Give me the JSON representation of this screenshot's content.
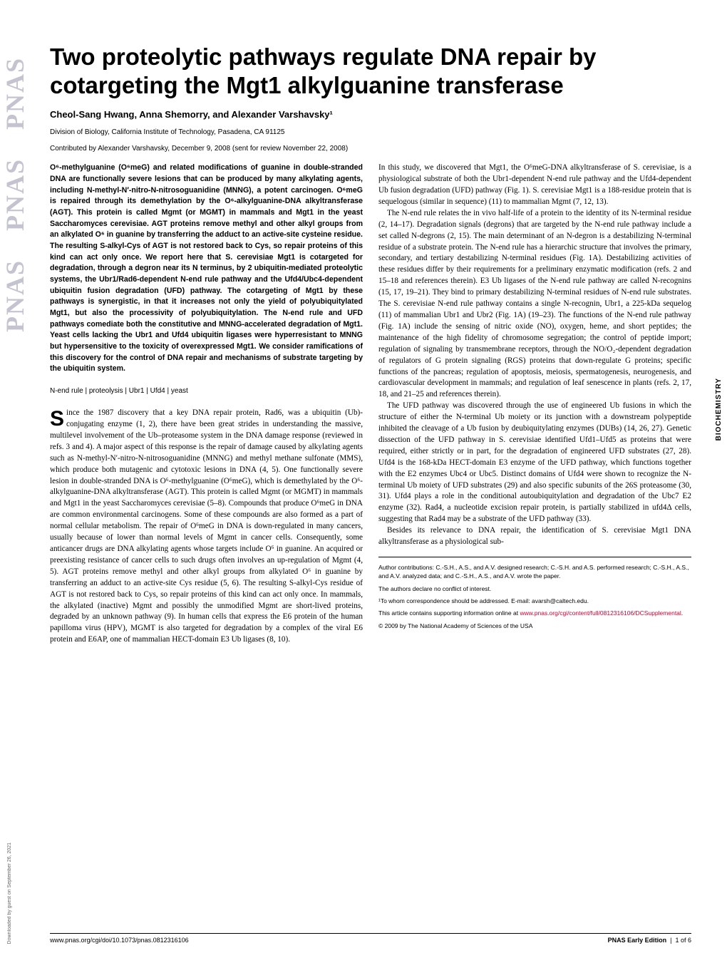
{
  "sidebar": {
    "logo_text": "PNAS",
    "download_note": "Downloaded by guest on September 26, 2021",
    "category": "BIOCHEMISTRY"
  },
  "header": {
    "title": "Two proteolytic pathways regulate DNA repair by cotargeting the Mgt1 alkylguanine transferase",
    "authors": "Cheol-Sang Hwang, Anna Shemorry, and Alexander Varshavsky¹",
    "affiliation": "Division of Biology, California Institute of Technology, Pasadena, CA 91125",
    "contributed": "Contributed by Alexander Varshavsky, December 9, 2008 (sent for review November 22, 2008)"
  },
  "abstract": "O⁶-methylguanine (O⁶meG) and related modifications of guanine in double-stranded DNA are functionally severe lesions that can be produced by many alkylating agents, including N-methyl-N′-nitro-N-nitrosoguanidine (MNNG), a potent carcinogen. O⁶meG is repaired through its demethylation by the O⁶-alkylguanine-DNA alkyltransferase (AGT). This protein is called Mgmt (or MGMT) in mammals and Mgt1 in the yeast Saccharomyces cerevisiae. AGT proteins remove methyl and other alkyl groups from an alkylated O⁶ in guanine by transferring the adduct to an active-site cysteine residue. The resulting S-alkyl-Cys of AGT is not restored back to Cys, so repair proteins of this kind can act only once. We report here that S. cerevisiae Mgt1 is cotargeted for degradation, through a degron near its N terminus, by 2 ubiquitin-mediated proteolytic systems, the Ubr1/Rad6-dependent N-end rule pathway and the Ufd4/Ubc4-dependent ubiquitin fusion degradation (UFD) pathway. The cotargeting of Mgt1 by these pathways is synergistic, in that it increases not only the yield of polyubiquitylated Mgt1, but also the processivity of polyubiquitylation. The N-end rule and UFD pathways comediate both the constitutive and MNNG-accelerated degradation of Mgt1. Yeast cells lacking the Ubr1 and Ufd4 ubiquitin ligases were hyperresistant to MNNG but hypersensitive to the toxicity of overexpressed Mgt1. We consider ramifications of this discovery for the control of DNA repair and mechanisms of substrate targeting by the ubiquitin system.",
  "keywords": "N-end rule | proteolysis | Ubr1 | Ufd4 | yeast",
  "col1_body": {
    "p1_first": "S",
    "p1_rest": "ince the 1987 discovery that a key DNA repair protein, Rad6, was a ubiquitin (Ub)-conjugating enzyme (1, 2), there have been great strides in understanding the massive, multilevel involvement of the Ub–proteasome system in the DNA damage response (reviewed in refs. 3 and 4). A major aspect of this response is the repair of damage caused by alkylating agents such as N-methyl-N′-nitro-N-nitrosoguanidine (MNNG) and methyl methane sulfonate (MMS), which produce both mutagenic and cytotoxic lesions in DNA (4, 5). One functionally severe lesion in double-stranded DNA is O⁶-methylguanine (O⁶meG), which is demethylated by the O⁶-alkylguanine-DNA alkyltransferase (AGT). This protein is called Mgmt (or MGMT) in mammals and Mgt1 in the yeast Saccharomyces cerevisiae (5–8). Compounds that produce O⁶meG in DNA are common environmental carcinogens. Some of these compounds are also formed as a part of normal cellular metabolism. The repair of O⁶meG in DNA is down-regulated in many cancers, usually because of lower than normal levels of Mgmt in cancer cells. Consequently, some anticancer drugs are DNA alkylating agents whose targets include O⁶ in guanine. An acquired or preexisting resistance of cancer cells to such drugs often involves an up-regulation of Mgmt (4, 5). AGT proteins remove methyl and other alkyl groups from alkylated O⁶ in guanine by transferring an adduct to an active-site Cys residue (5, 6). The resulting S-alkyl-Cys residue of AGT is not restored back to Cys, so repair proteins of this kind can act only once. In mammals, the alkylated (inactive) Mgmt and possibly the unmodified Mgmt are short-lived proteins, degraded by an unknown pathway (9). In human cells that express the E6 protein of the human papilloma virus (HPV), MGMT is also targeted for degradation by a complex of the viral E6 protein and E6AP, one of mammalian HECT-domain E3 Ub ligases (8, 10)."
  },
  "col2_body": {
    "p1": "In this study, we discovered that Mgt1, the O⁶meG-DNA alkyltransferase of S. cerevisiae, is a physiological substrate of both the Ubr1-dependent N-end rule pathway and the Ufd4-dependent Ub fusion degradation (UFD) pathway (Fig. 1). S. cerevisiae Mgt1 is a 188-residue protein that is sequelogous (similar in sequence) (11) to mammalian Mgmt (7, 12, 13).",
    "p2": "The N-end rule relates the in vivo half-life of a protein to the identity of its N-terminal residue (2, 14–17). Degradation signals (degrons) that are targeted by the N-end rule pathway include a set called N-degrons (2, 15). The main determinant of an N-degron is a destabilizing N-terminal residue of a substrate protein. The N-end rule has a hierarchic structure that involves the primary, secondary, and tertiary destabilizing N-terminal residues (Fig. 1A). Destabilizing activities of these residues differ by their requirements for a preliminary enzymatic modification (refs. 2 and 15–18 and references therein). E3 Ub ligases of the N-end rule pathway are called N-recognins (15, 17, 19–21). They bind to primary destabilizing N-terminal residues of N-end rule substrates. The S. cerevisiae N-end rule pathway contains a single N-recognin, Ubr1, a 225-kDa sequelog (11) of mammalian Ubr1 and Ubr2 (Fig. 1A) (19–23). The functions of the N-end rule pathway (Fig. 1A) include the sensing of nitric oxide (NO), oxygen, heme, and short peptides; the maintenance of the high fidelity of chromosome segregation; the control of peptide import; regulation of signaling by transmembrane receptors, through the NO/O₂-dependent degradation of regulators of G protein signaling (RGS) proteins that down-regulate G proteins; specific functions of the pancreas; regulation of apoptosis, meiosis, spermatogenesis, neurogenesis, and cardiovascular development in mammals; and regulation of leaf senescence in plants (refs. 2, 17, 18, and 21–25 and references therein).",
    "p3": "The UFD pathway was discovered through the use of engineered Ub fusions in which the structure of either the N-terminal Ub moiety or its junction with a downstream polypeptide inhibited the cleavage of a Ub fusion by deubiquitylating enzymes (DUBs) (14, 26, 27). Genetic dissection of the UFD pathway in S. cerevisiae identified Ufd1–Ufd5 as proteins that were required, either strictly or in part, for the degradation of engineered UFD substrates (27, 28). Ufd4 is the 168-kDa HECT-domain E3 enzyme of the UFD pathway, which functions together with the E2 enzymes Ubc4 or Ubc5. Distinct domains of Ufd4 were shown to recognize the N-terminal Ub moiety of UFD substrates (29) and also specific subunits of the 26S proteasome (30, 31). Ufd4 plays a role in the conditional autoubiquitylation and degradation of the Ubc7 E2 enzyme (32). Rad4, a nucleotide excision repair protein, is partially stabilized in ufd4Δ cells, suggesting that Rad4 may be a substrate of the UFD pathway (33).",
    "p4": "Besides its relevance to DNA repair, the identification of S. cerevisiae Mgt1 DNA alkyltransferase as a physiological sub-"
  },
  "footnotes": {
    "contributions": "Author contributions: C.-S.H., A.S., and A.V. designed research; C.-S.H. and A.S. performed research; C.-S.H., A.S., and A.V. analyzed data; and C.-S.H., A.S., and A.V. wrote the paper.",
    "conflict": "The authors declare no conflict of interest.",
    "correspondence": "¹To whom correspondence should be addressed. E-mail: avarsh@caltech.edu.",
    "supp_prefix": "This article contains supporting information online at ",
    "supp_link": "www.pnas.org/cgi/content/full/0812316106/DCSupplemental",
    "copyright": "© 2009 by The National Academy of Sciences of the USA"
  },
  "footer": {
    "doi": "www.pnas.org/cgi/doi/10.1073/pnas.0812316106",
    "journal": "PNAS Early Edition",
    "page": "1 of 6"
  },
  "colors": {
    "link": "#cc0033",
    "sidebar_logo": "#5a5a7a"
  }
}
